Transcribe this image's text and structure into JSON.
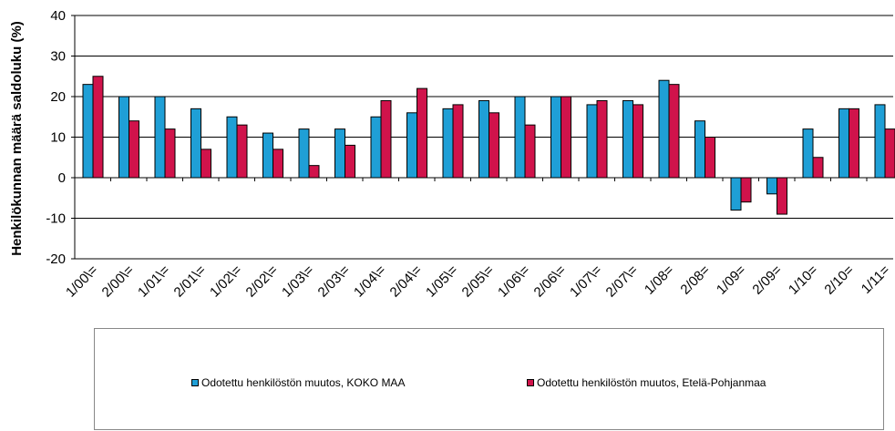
{
  "chart_data": {
    "type": "bar",
    "ylabel": "Henkilökunnan määrä saldoluku (%)",
    "ylim": [
      -20,
      40
    ],
    "yticks": [
      40,
      30,
      20,
      10,
      0,
      -10,
      -20
    ],
    "grid": true,
    "legend_position": "bottom",
    "categories": [
      "1/00\\=",
      "2/00\\=",
      "1/01\\=",
      "2/01\\=",
      "1/02\\=",
      "2/02\\=",
      "1/03\\=",
      "2/03\\=",
      "1/04\\=",
      "2/04\\=",
      "1/05\\=",
      "2/05\\=",
      "1/06\\=",
      "2/06\\=",
      "1/07\\=",
      "2/07\\=",
      "1/08=",
      "2/08=",
      "1/09=",
      "2/09=",
      "1/10=",
      "2/10=",
      "1/11="
    ],
    "series": [
      {
        "name": "Odotettu henkilöstön muutos, KOKO MAA",
        "color": "#1f9fd6",
        "values": [
          23,
          20,
          20,
          17,
          15,
          11,
          12,
          12,
          15,
          16,
          17,
          19,
          20,
          20,
          18,
          19,
          24,
          14,
          -8,
          -4,
          12,
          17,
          18
        ]
      },
      {
        "name": "Odotettu henkilöstön muutos, Etelä-Pohjanmaa",
        "color": "#d0134b",
        "values": [
          25,
          14,
          12,
          7,
          13,
          7,
          3,
          8,
          19,
          22,
          18,
          16,
          13,
          20,
          19,
          18,
          23,
          10,
          -6,
          -9,
          5,
          17,
          12
        ]
      }
    ]
  }
}
